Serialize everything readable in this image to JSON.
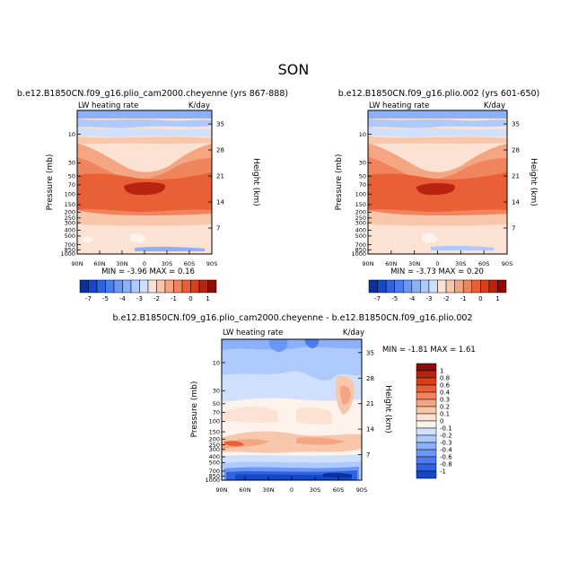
{
  "chart_data": {
    "type": "heatmap",
    "title": "SON",
    "x_ticks": [
      "90N",
      "60N",
      "30N",
      "0",
      "30S",
      "60S",
      "90S"
    ],
    "p_ticks": [
      "10",
      "30",
      "50",
      "70",
      "100",
      "150",
      "200",
      "250",
      "300",
      "400",
      "500",
      "700",
      "850",
      "1000"
    ],
    "h_ticks": [
      "35",
      "28",
      "21",
      "14",
      "7"
    ],
    "panels": [
      {
        "id": "cheyenne",
        "subtitle": "b.e12.B1850CN.f09_g16.plio_cam2000.cheyenne (yrs 867-888)",
        "left_label": "LW heating rate",
        "right_label": "K/day",
        "y_label": "Pressure (mb)",
        "y2_label": "Height (km)",
        "stats": "MIN = -3.96 MAX = 0.16"
      },
      {
        "id": "plio002",
        "subtitle": "b.e12.B1850CN.f09_g16.plio.002 (yrs 601-650)",
        "left_label": "LW heating rate",
        "right_label": "K/day",
        "y_label": "Pressure (mb)",
        "y2_label": "Height (km)",
        "stats": "MIN = -3.73 MAX = 0.20"
      },
      {
        "id": "diff",
        "subtitle": "b.e12.B1850CN.f09_g16.plio_cam2000.cheyenne - b.e12.B1850CN.f09_g16.plio.002",
        "left_label": "LW heating rate",
        "right_label": "K/day",
        "y_label": "Pressure (mb)",
        "y2_label": "Height (km)",
        "stats": "MIN = -1.81 MAX = 1.61"
      }
    ],
    "top_colorbar": {
      "labels": [
        "-7",
        "-5",
        "-4",
        "-3",
        "-2",
        "-1",
        "0",
        "1"
      ],
      "colors": [
        "#08309e",
        "#1448c8",
        "#2e62e0",
        "#4a7cee",
        "#6a96f6",
        "#8cb0fa",
        "#aecafc",
        "#cfe0fe",
        "#fbe2d2",
        "#f8c6aa",
        "#f4a682",
        "#f0845c",
        "#ea6036",
        "#d8401c",
        "#b82410",
        "#8c0c06"
      ]
    },
    "diff_colorbar": {
      "labels": [
        "1",
        "0.8",
        "0.6",
        "0.4",
        "0.3",
        "0.2",
        "0.1",
        "0",
        "-0.1",
        "-0.2",
        "-0.3",
        "-0.4",
        "-0.6",
        "-0.8",
        "-1"
      ],
      "colors": [
        "#8c0c06",
        "#b82410",
        "#d8401c",
        "#ea6036",
        "#f0845c",
        "#f4a682",
        "#f8c6aa",
        "#fbe2d2",
        "#fdf3ec",
        "#cfe0fe",
        "#aecafc",
        "#8cb0fa",
        "#6a96f6",
        "#4a7cee",
        "#2e62e0",
        "#1448c8"
      ]
    }
  }
}
